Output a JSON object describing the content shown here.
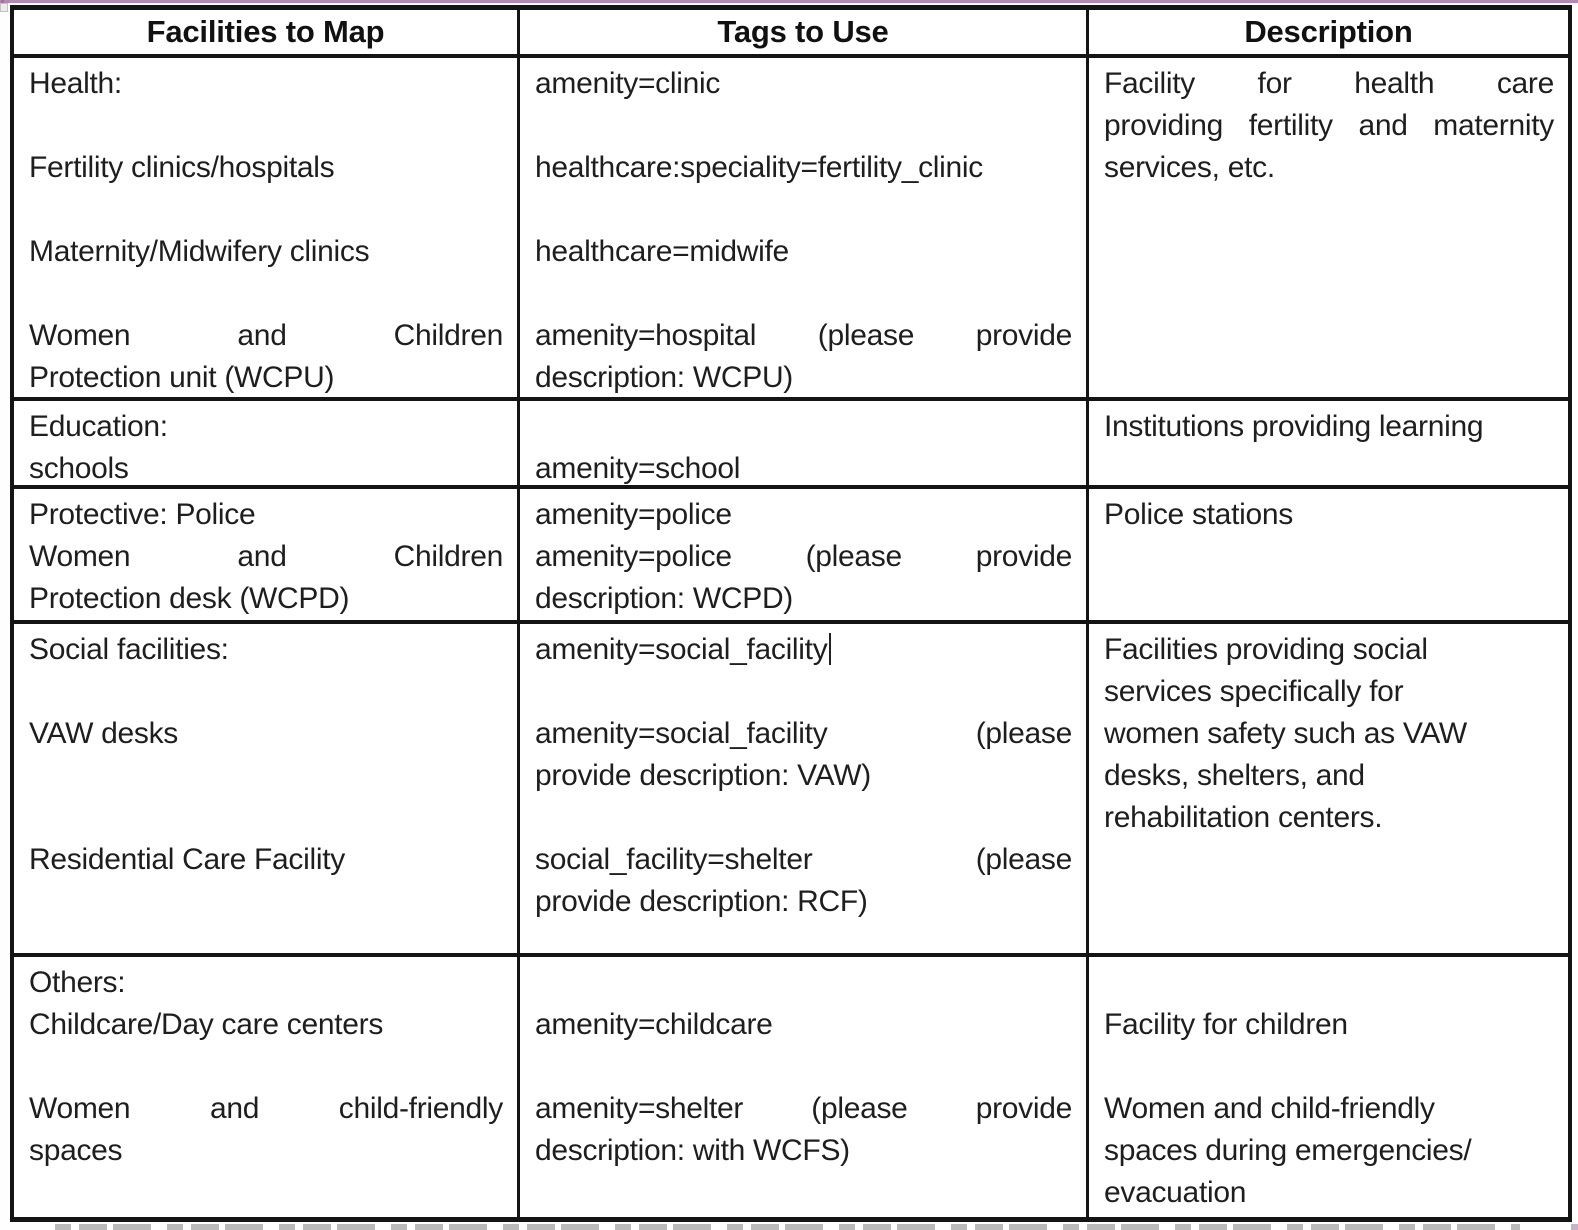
{
  "page": {
    "top_rule_color": "#b18ab1",
    "border_color": "#141414",
    "text_color": "#1e1e1e"
  },
  "table": {
    "columns": [
      {
        "label": "Facilities to Map"
      },
      {
        "label": "Tags to Use"
      },
      {
        "label": "Description"
      }
    ],
    "rows": [
      {
        "name": "health",
        "cells": [
          {
            "lines": [
              {
                "text": "Health:"
              },
              {
                "blank": true
              },
              {
                "text": "Fertility clinics/hospitals"
              },
              {
                "blank": true
              },
              {
                "text": "Maternity/Midwifery clinics"
              },
              {
                "blank": true
              },
              {
                "words": [
                  "Women",
                  "and",
                  "Children"
                ]
              },
              {
                "text": "Protection unit (WCPU)"
              }
            ]
          },
          {
            "lines": [
              {
                "text": "amenity=clinic"
              },
              {
                "blank": true
              },
              {
                "text": "healthcare:speciality=fertility_clinic"
              },
              {
                "blank": true
              },
              {
                "text": "healthcare=midwife"
              },
              {
                "blank": true
              },
              {
                "words": [
                  "amenity=hospital",
                  "(please",
                  "provide"
                ]
              },
              {
                "text": "description: WCPU)"
              }
            ]
          },
          {
            "lines": [
              {
                "words": [
                  "Facility",
                  "for",
                  "health",
                  "care"
                ]
              },
              {
                "words": [
                  "providing",
                  "fertility",
                  "and",
                  "maternity"
                ]
              },
              {
                "text": "services, etc."
              }
            ]
          }
        ]
      },
      {
        "name": "education",
        "cells": [
          {
            "lines": [
              {
                "text": "Education:"
              },
              {
                "text": "schools"
              }
            ]
          },
          {
            "lines": [
              {
                "blank": true
              },
              {
                "text": "amenity=school"
              }
            ]
          },
          {
            "lines": [
              {
                "text": "Institutions providing learning"
              }
            ]
          }
        ]
      },
      {
        "name": "protective",
        "cells": [
          {
            "lines": [
              {
                "text": "Protective: Police"
              },
              {
                "words": [
                  "Women",
                  "and",
                  "Children"
                ]
              },
              {
                "text": "Protection desk (WCPD)"
              }
            ]
          },
          {
            "lines": [
              {
                "text": "amenity=police"
              },
              {
                "words": [
                  "amenity=police",
                  "(please",
                  "provide"
                ]
              },
              {
                "text": "description: WCPD)"
              }
            ]
          },
          {
            "lines": [
              {
                "text": "Police stations"
              }
            ]
          }
        ]
      },
      {
        "name": "social-facilities",
        "cells": [
          {
            "lines": [
              {
                "text": "Social facilities:"
              },
              {
                "blank": true
              },
              {
                "text": "VAW desks"
              },
              {
                "blank": true
              },
              {
                "blank": true
              },
              {
                "text": "Residential Care Facility"
              }
            ]
          },
          {
            "lines": [
              {
                "text": "amenity=social_facility",
                "caret": true
              },
              {
                "blank": true
              },
              {
                "words": [
                  "amenity=social_facility",
                  "(please"
                ]
              },
              {
                "text": "provide description: VAW)"
              },
              {
                "blank": true
              },
              {
                "words": [
                  "social_facility=shelter",
                  "(please"
                ]
              },
              {
                "text": "provide description: RCF)"
              }
            ]
          },
          {
            "lines": [
              {
                "text": "Facilities providing social"
              },
              {
                "text": "services specifically for"
              },
              {
                "text": "women safety such as VAW"
              },
              {
                "text": "desks, shelters, and"
              },
              {
                "text": "rehabilitation centers."
              }
            ]
          }
        ]
      },
      {
        "name": "others",
        "cells": [
          {
            "lines": [
              {
                "text": "Others:"
              },
              {
                "text": "Childcare/Day care centers"
              },
              {
                "blank": true
              },
              {
                "words": [
                  "Women",
                  "and",
                  "child-friendly"
                ]
              },
              {
                "text": "spaces"
              }
            ]
          },
          {
            "lines": [
              {
                "blank": true
              },
              {
                "text": "amenity=childcare"
              },
              {
                "blank": true
              },
              {
                "words": [
                  "amenity=shelter",
                  "(please",
                  "provide"
                ]
              },
              {
                "text": "description: with WCFS)"
              }
            ]
          },
          {
            "lines": [
              {
                "blank": true
              },
              {
                "text": "Facility for children"
              },
              {
                "blank": true
              },
              {
                "text": "Women and child-friendly"
              },
              {
                "text": "spaces during emergencies/"
              },
              {
                "text": "evacuation"
              }
            ]
          }
        ]
      }
    ]
  }
}
